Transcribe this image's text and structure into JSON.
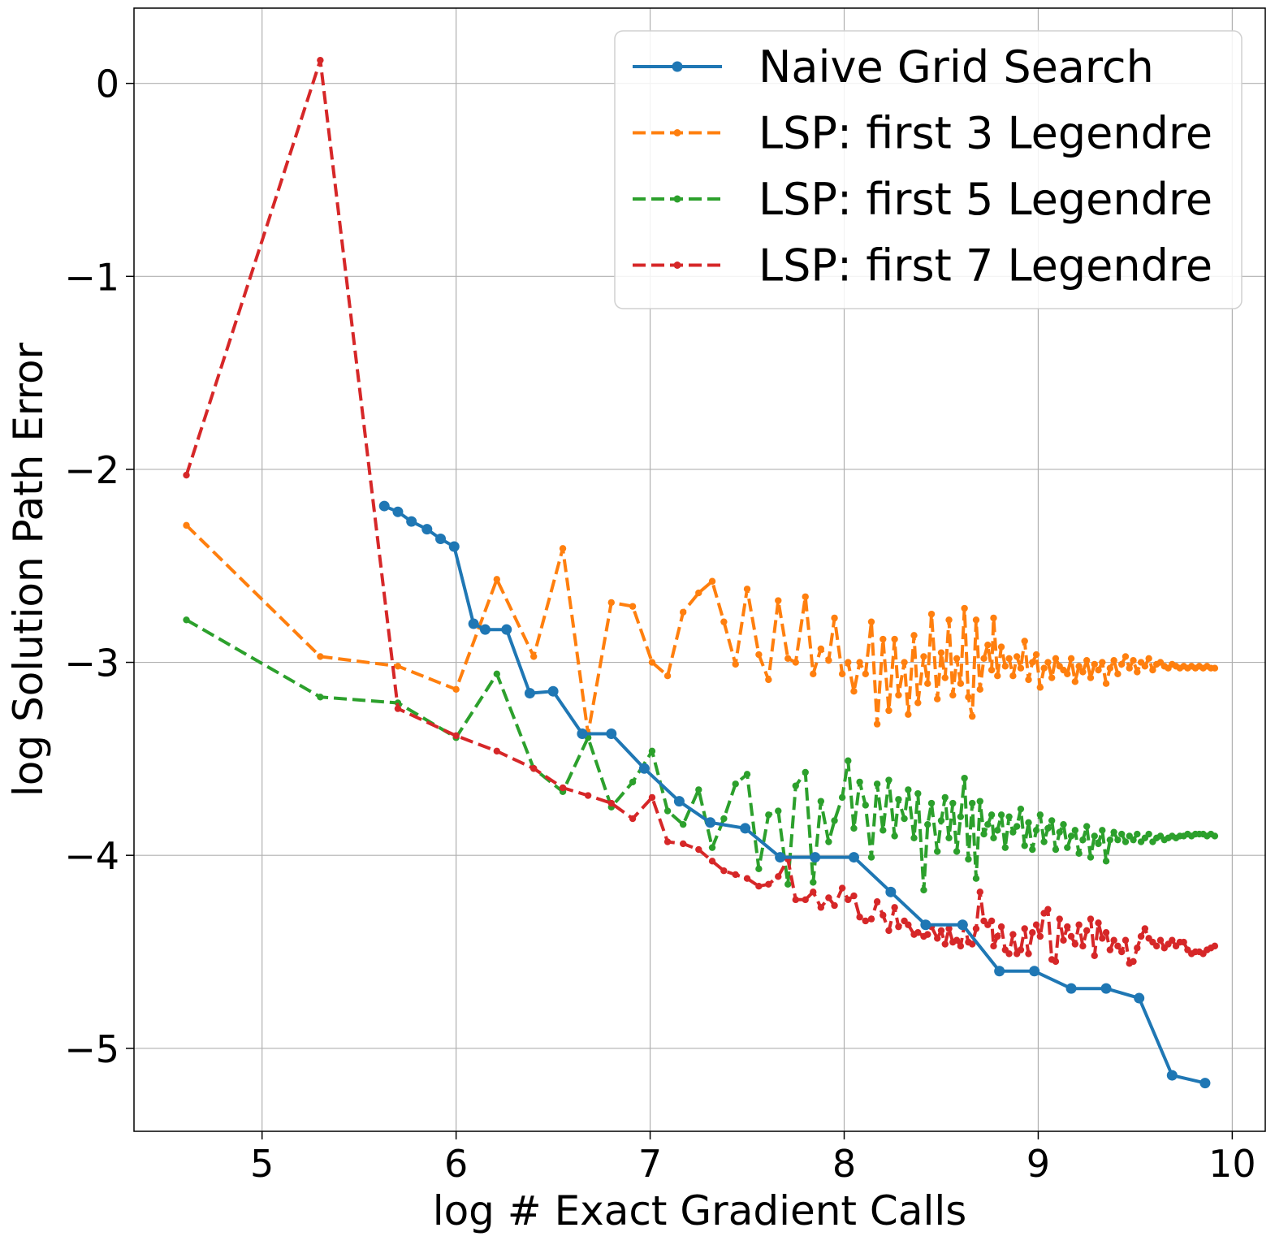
{
  "chart_data": {
    "type": "line",
    "xlabel": "log  # Exact Gradient Calls",
    "ylabel": "log  Solution Path Error",
    "xlim": [
      4.34,
      10.17
    ],
    "ylim": [
      -5.43,
      0.39
    ],
    "xticks": [
      5,
      6,
      7,
      8,
      9,
      10
    ],
    "yticks": [
      0,
      -1,
      -2,
      -3,
      -4,
      -5
    ],
    "xtick_labels": [
      "5",
      "6",
      "7",
      "8",
      "9",
      "10"
    ],
    "ytick_labels": [
      "0",
      "−1",
      "−2",
      "−3",
      "−4",
      "−5"
    ],
    "grid": true,
    "legend_position": "top-right",
    "series": [
      {
        "name": "Naive Grid Search",
        "color": "#1f77b4",
        "style": "solid",
        "x": [
          5.63,
          5.7,
          5.77,
          5.85,
          5.92,
          5.99,
          6.09,
          6.15,
          6.26,
          6.38,
          6.5,
          6.65,
          6.8,
          6.97,
          7.15,
          7.31,
          7.49,
          7.67,
          7.85,
          8.05,
          8.24,
          8.42,
          8.61,
          8.8,
          8.98,
          9.17,
          9.35,
          9.52,
          9.69,
          9.86
        ],
        "y": [
          -2.19,
          -2.22,
          -2.27,
          -2.31,
          -2.36,
          -2.4,
          -2.8,
          -2.83,
          -2.83,
          -3.16,
          -3.15,
          -3.37,
          -3.37,
          -3.55,
          -3.72,
          -3.83,
          -3.86,
          -4.01,
          -4.01,
          -4.01,
          -4.19,
          -4.36,
          -4.36,
          -4.6,
          -4.6,
          -4.69,
          -4.69,
          -4.74,
          -5.14,
          -5.18
        ]
      },
      {
        "name": "LSP: first 3 Legendre",
        "color": "#ff7f0e",
        "style": "dashed",
        "x": [
          4.61,
          5.3,
          5.7,
          6.0,
          6.21,
          6.4,
          6.55,
          6.68,
          6.8,
          6.91,
          7.01,
          7.09,
          7.17,
          7.25,
          7.32,
          7.38,
          7.44,
          7.5,
          7.56,
          7.61,
          7.66,
          7.71,
          7.75,
          7.8,
          7.84,
          7.88,
          7.92,
          7.95,
          7.99,
          8.02,
          8.05,
          8.08,
          8.11,
          8.14,
          8.17,
          8.2,
          8.23,
          8.26,
          8.28,
          8.31,
          8.33,
          8.36,
          8.38,
          8.41,
          8.43,
          8.45,
          8.48,
          8.5,
          8.52,
          8.54,
          8.56,
          8.58,
          8.6,
          8.62,
          8.64,
          8.66,
          8.68,
          8.7,
          8.72,
          8.74,
          8.76,
          8.77,
          8.79,
          8.81,
          8.83,
          8.85,
          8.87,
          8.89,
          8.91,
          8.93,
          8.95,
          8.97,
          8.99,
          9.01,
          9.03,
          9.05,
          9.07,
          9.09,
          9.11,
          9.13,
          9.15,
          9.17,
          9.19,
          9.21,
          9.23,
          9.25,
          9.27,
          9.29,
          9.31,
          9.33,
          9.35,
          9.37,
          9.39,
          9.41,
          9.43,
          9.45,
          9.47,
          9.49,
          9.51,
          9.53,
          9.55,
          9.57,
          9.59,
          9.61,
          9.63,
          9.65,
          9.67,
          9.69,
          9.71,
          9.73,
          9.75,
          9.77,
          9.79,
          9.81,
          9.83,
          9.85,
          9.87,
          9.89,
          9.91
        ],
        "y": [
          -2.29,
          -2.97,
          -3.02,
          -3.14,
          -2.57,
          -2.97,
          -2.41,
          -3.37,
          -2.69,
          -2.71,
          -3.0,
          -3.07,
          -2.74,
          -2.64,
          -2.58,
          -2.79,
          -3.01,
          -2.62,
          -2.96,
          -3.09,
          -2.68,
          -2.98,
          -3.0,
          -2.66,
          -3.06,
          -2.93,
          -2.99,
          -2.77,
          -3.06,
          -3.0,
          -3.15,
          -3.0,
          -3.06,
          -2.79,
          -3.32,
          -2.88,
          -3.25,
          -2.88,
          -3.17,
          -3.0,
          -3.27,
          -2.86,
          -3.21,
          -2.97,
          -3.11,
          -2.75,
          -3.19,
          -2.95,
          -3.08,
          -2.78,
          -3.17,
          -2.98,
          -3.11,
          -2.72,
          -3.18,
          -3.28,
          -2.78,
          -3.14,
          -2.98,
          -2.91,
          -3.04,
          -2.77,
          -3.07,
          -2.92,
          -3.02,
          -2.98,
          -3.07,
          -2.97,
          -3.03,
          -2.89,
          -3.09,
          -3.0,
          -2.96,
          -3.13,
          -3.03,
          -3.0,
          -3.08,
          -2.98,
          -3.02,
          -3.04,
          -3.06,
          -2.98,
          -3.1,
          -3.02,
          -3.05,
          -2.99,
          -3.08,
          -3.01,
          -3.04,
          -3.0,
          -3.11,
          -3.03,
          -2.99,
          -3.06,
          -3.01,
          -2.97,
          -3.03,
          -2.99,
          -3.05,
          -3.0,
          -3.02,
          -2.98,
          -3.04,
          -3.01,
          -3.0,
          -3.02,
          -3.03,
          -3.01,
          -3.02,
          -3.03,
          -3.02,
          -3.03,
          -3.02,
          -3.03,
          -3.02,
          -3.03,
          -3.02,
          -3.03,
          -3.03
        ]
      },
      {
        "name": "LSP: first 5 Legendre",
        "color": "#2ca02c",
        "style": "dashed",
        "x": [
          4.61,
          5.3,
          5.7,
          6.0,
          6.21,
          6.4,
          6.55,
          6.68,
          6.8,
          6.91,
          7.01,
          7.09,
          7.17,
          7.25,
          7.32,
          7.38,
          7.44,
          7.5,
          7.56,
          7.61,
          7.66,
          7.71,
          7.75,
          7.8,
          7.84,
          7.88,
          7.92,
          7.95,
          7.99,
          8.02,
          8.05,
          8.08,
          8.11,
          8.14,
          8.17,
          8.2,
          8.23,
          8.26,
          8.28,
          8.31,
          8.33,
          8.36,
          8.38,
          8.41,
          8.43,
          8.45,
          8.48,
          8.5,
          8.52,
          8.54,
          8.56,
          8.58,
          8.6,
          8.62,
          8.64,
          8.66,
          8.68,
          8.7,
          8.72,
          8.74,
          8.76,
          8.77,
          8.79,
          8.81,
          8.83,
          8.85,
          8.87,
          8.89,
          8.91,
          8.93,
          8.95,
          8.97,
          8.99,
          9.01,
          9.03,
          9.05,
          9.07,
          9.09,
          9.11,
          9.13,
          9.15,
          9.17,
          9.19,
          9.21,
          9.23,
          9.25,
          9.27,
          9.29,
          9.31,
          9.33,
          9.35,
          9.37,
          9.39,
          9.41,
          9.43,
          9.45,
          9.47,
          9.49,
          9.51,
          9.53,
          9.55,
          9.57,
          9.59,
          9.61,
          9.63,
          9.65,
          9.67,
          9.69,
          9.71,
          9.73,
          9.75,
          9.77,
          9.79,
          9.81,
          9.83,
          9.85,
          9.87,
          9.89,
          9.91
        ],
        "y": [
          -2.78,
          -3.18,
          -3.21,
          -3.39,
          -3.06,
          -3.55,
          -3.67,
          -3.39,
          -3.75,
          -3.62,
          -3.46,
          -3.77,
          -3.84,
          -3.66,
          -3.96,
          -3.81,
          -3.63,
          -3.58,
          -4.07,
          -3.79,
          -3.77,
          -4.15,
          -3.64,
          -3.57,
          -4.14,
          -3.72,
          -3.93,
          -3.82,
          -3.7,
          -3.51,
          -3.86,
          -3.62,
          -3.74,
          -4.01,
          -3.63,
          -3.87,
          -3.61,
          -3.9,
          -3.71,
          -3.81,
          -3.66,
          -3.91,
          -3.68,
          -4.18,
          -3.84,
          -3.73,
          -3.98,
          -3.82,
          -3.7,
          -3.91,
          -3.73,
          -3.98,
          -3.8,
          -3.6,
          -4.02,
          -3.73,
          -4.12,
          -3.72,
          -3.89,
          -3.84,
          -3.79,
          -3.91,
          -3.87,
          -3.79,
          -3.96,
          -3.8,
          -3.88,
          -3.85,
          -3.76,
          -3.95,
          -3.83,
          -3.97,
          -3.87,
          -3.79,
          -3.93,
          -3.86,
          -3.82,
          -3.97,
          -3.88,
          -3.84,
          -3.96,
          -3.9,
          -3.87,
          -3.99,
          -3.92,
          -3.85,
          -4.01,
          -3.9,
          -3.94,
          -3.87,
          -4.03,
          -3.92,
          -3.88,
          -3.92,
          -3.89,
          -3.93,
          -3.9,
          -3.92,
          -3.89,
          -3.93,
          -3.91,
          -3.89,
          -3.93,
          -3.91,
          -3.9,
          -3.92,
          -3.91,
          -3.9,
          -3.91,
          -3.9,
          -3.9,
          -3.89,
          -3.9,
          -3.89,
          -3.89,
          -3.89,
          -3.9,
          -3.89,
          -3.9
        ]
      },
      {
        "name": "LSP: first 7 Legendre",
        "color": "#d62728",
        "style": "dashed",
        "x": [
          4.61,
          5.3,
          5.7,
          6.0,
          6.21,
          6.4,
          6.55,
          6.68,
          6.8,
          6.91,
          7.01,
          7.09,
          7.17,
          7.25,
          7.32,
          7.38,
          7.44,
          7.5,
          7.56,
          7.61,
          7.66,
          7.71,
          7.75,
          7.8,
          7.84,
          7.88,
          7.92,
          7.95,
          7.99,
          8.02,
          8.05,
          8.08,
          8.11,
          8.14,
          8.17,
          8.2,
          8.23,
          8.26,
          8.28,
          8.31,
          8.33,
          8.36,
          8.38,
          8.41,
          8.43,
          8.45,
          8.48,
          8.5,
          8.52,
          8.54,
          8.56,
          8.58,
          8.6,
          8.62,
          8.64,
          8.66,
          8.68,
          8.7,
          8.72,
          8.74,
          8.76,
          8.77,
          8.79,
          8.81,
          8.83,
          8.85,
          8.87,
          8.89,
          8.91,
          8.93,
          8.95,
          8.97,
          8.99,
          9.01,
          9.03,
          9.05,
          9.07,
          9.09,
          9.11,
          9.13,
          9.15,
          9.17,
          9.19,
          9.21,
          9.23,
          9.25,
          9.27,
          9.29,
          9.31,
          9.33,
          9.35,
          9.37,
          9.39,
          9.41,
          9.43,
          9.45,
          9.47,
          9.49,
          9.51,
          9.53,
          9.55,
          9.57,
          9.59,
          9.61,
          9.63,
          9.65,
          9.67,
          9.69,
          9.71,
          9.73,
          9.75,
          9.77,
          9.79,
          9.81,
          9.83,
          9.85,
          9.87,
          9.89,
          9.91
        ],
        "y": [
          -2.03,
          0.12,
          -3.24,
          -3.38,
          -3.46,
          -3.55,
          -3.65,
          -3.69,
          -3.73,
          -3.81,
          -3.7,
          -3.93,
          -3.94,
          -3.97,
          -4.03,
          -4.08,
          -4.1,
          -4.12,
          -4.16,
          -4.15,
          -4.11,
          -4.02,
          -4.23,
          -4.23,
          -4.19,
          -4.27,
          -4.22,
          -4.26,
          -4.17,
          -4.23,
          -4.21,
          -4.32,
          -4.34,
          -4.33,
          -4.24,
          -4.31,
          -4.39,
          -4.27,
          -4.37,
          -4.34,
          -4.36,
          -4.41,
          -4.4,
          -4.42,
          -4.41,
          -4.37,
          -4.43,
          -4.39,
          -4.46,
          -4.38,
          -4.45,
          -4.44,
          -4.47,
          -4.36,
          -4.45,
          -4.46,
          -4.38,
          -4.19,
          -4.34,
          -4.36,
          -4.34,
          -4.47,
          -4.42,
          -4.37,
          -4.49,
          -4.51,
          -4.41,
          -4.51,
          -4.49,
          -4.38,
          -4.51,
          -4.4,
          -4.36,
          -4.42,
          -4.3,
          -4.28,
          -4.54,
          -4.55,
          -4.33,
          -4.44,
          -4.37,
          -4.42,
          -4.46,
          -4.36,
          -4.47,
          -4.39,
          -4.33,
          -4.52,
          -4.35,
          -4.43,
          -4.4,
          -4.49,
          -4.44,
          -4.47,
          -4.5,
          -4.44,
          -4.56,
          -4.55,
          -4.48,
          -4.42,
          -4.38,
          -4.43,
          -4.45,
          -4.47,
          -4.44,
          -4.48,
          -4.46,
          -4.44,
          -4.47,
          -4.45,
          -4.45,
          -4.49,
          -4.51,
          -4.5,
          -4.5,
          -4.51,
          -4.49,
          -4.48,
          -4.47
        ]
      }
    ]
  }
}
